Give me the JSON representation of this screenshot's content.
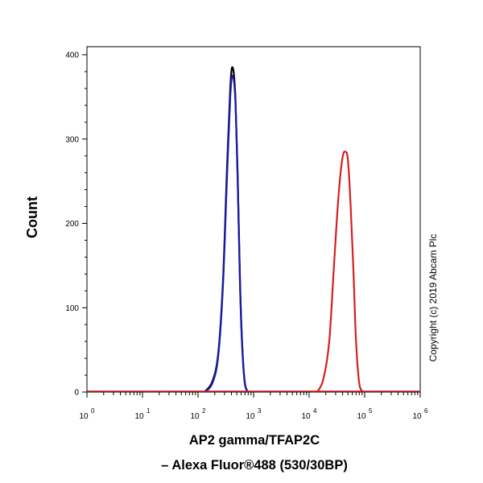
{
  "chart_data": {
    "type": "line",
    "xlabel_line1": "AP2 gamma/TFAP2C",
    "xlabel_line2": "– Alexa Fluor®488 (530/30BP)",
    "ylabel": "Count",
    "copyright": "Copyright (c) 2019 Abcam Plc",
    "x_scale": "log",
    "x_ticks": [
      {
        "exp": "0",
        "value": 1
      },
      {
        "exp": "1",
        "value": 10
      },
      {
        "exp": "2",
        "value": 100
      },
      {
        "exp": "3",
        "value": 1000
      },
      {
        "exp": "4",
        "value": 10000
      },
      {
        "exp": "5",
        "value": 100000
      },
      {
        "exp": "6",
        "value": 1000000
      }
    ],
    "x_tick_base": "10",
    "y_ticks": [
      "0",
      "100",
      "200",
      "300",
      "400"
    ],
    "ylim": [
      0,
      400
    ],
    "grid": false,
    "legend": "none",
    "series": [
      {
        "color": "#000000",
        "x": [
          130,
          180,
          230,
          280,
          330,
          380,
          420,
          470,
          520,
          570,
          630,
          700,
          800
        ],
        "values": [
          0,
          12,
          45,
          130,
          260,
          360,
          385,
          350,
          250,
          130,
          50,
          10,
          0
        ]
      },
      {
        "color": "#1a1aa8",
        "x": [
          130,
          180,
          230,
          280,
          330,
          380,
          420,
          470,
          520,
          570,
          630,
          700,
          800
        ],
        "values": [
          0,
          10,
          42,
          125,
          250,
          350,
          375,
          345,
          245,
          125,
          48,
          9,
          0
        ]
      },
      {
        "color": "#d42020",
        "x": [
          14000,
          18000,
          23000,
          28000,
          34000,
          40000,
          45000,
          50000,
          56000,
          63000,
          70000,
          80000,
          95000
        ],
        "values": [
          0,
          15,
          60,
          150,
          235,
          278,
          285,
          275,
          220,
          140,
          60,
          10,
          0
        ]
      }
    ]
  }
}
